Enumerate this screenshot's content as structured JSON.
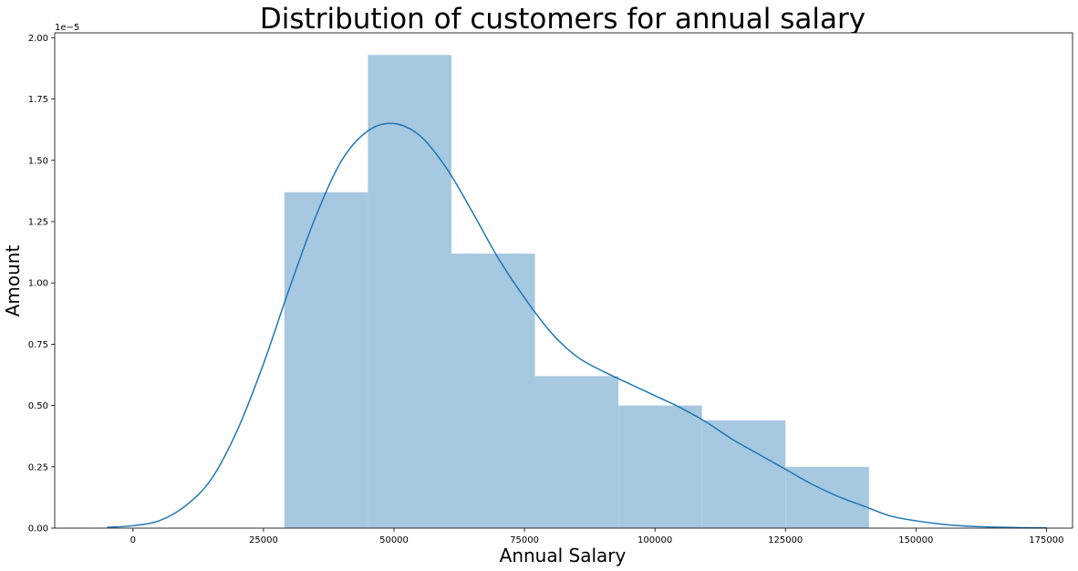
{
  "chart_data": {
    "type": "bar",
    "title": "Distribution of customers for annual salary",
    "xlabel": "Annual Salary",
    "ylabel": "Amount",
    "y_offset_label": "1e−5",
    "y_scale_exponent": -5,
    "xlim": [
      -15000,
      180000
    ],
    "ylim": [
      0,
      2.02
    ],
    "grid": false,
    "x_ticks": [
      0,
      25000,
      50000,
      75000,
      100000,
      125000,
      150000,
      175000
    ],
    "x_tick_labels": [
      "0",
      "25000",
      "50000",
      "75000",
      "100000",
      "125000",
      "150000",
      "175000"
    ],
    "y_ticks": [
      0,
      0.25,
      0.5,
      0.75,
      1.0,
      1.25,
      1.5,
      1.75,
      2.0
    ],
    "y_tick_labels": [
      "0.00",
      "0.25",
      "0.50",
      "0.75",
      "1.00",
      "1.25",
      "1.50",
      "1.75",
      "2.00"
    ],
    "histogram": {
      "bin_edges": [
        29000,
        45000,
        61000,
        77000,
        93000,
        109000,
        125000,
        141000
      ],
      "values": [
        1.37,
        1.93,
        1.12,
        0.62,
        0.5,
        0.44,
        0.25
      ],
      "color": "#a6c8e0"
    },
    "kde": {
      "color": "#1f77b4",
      "x": [
        -5000,
        0,
        5000,
        10000,
        15000,
        20000,
        25000,
        30000,
        35000,
        40000,
        45000,
        50000,
        55000,
        60000,
        65000,
        70000,
        75000,
        80000,
        85000,
        90000,
        95000,
        100000,
        105000,
        110000,
        115000,
        120000,
        125000,
        130000,
        135000,
        140000,
        145000,
        150000,
        155000,
        160000,
        165000,
        170000,
        175000
      ],
      "y": [
        0.003,
        0.01,
        0.03,
        0.09,
        0.2,
        0.4,
        0.67,
        0.98,
        1.27,
        1.5,
        1.62,
        1.65,
        1.6,
        1.47,
        1.29,
        1.1,
        0.94,
        0.8,
        0.7,
        0.64,
        0.59,
        0.54,
        0.49,
        0.43,
        0.36,
        0.3,
        0.24,
        0.18,
        0.13,
        0.09,
        0.05,
        0.03,
        0.016,
        0.008,
        0.004,
        0.002,
        0.001
      ]
    }
  }
}
